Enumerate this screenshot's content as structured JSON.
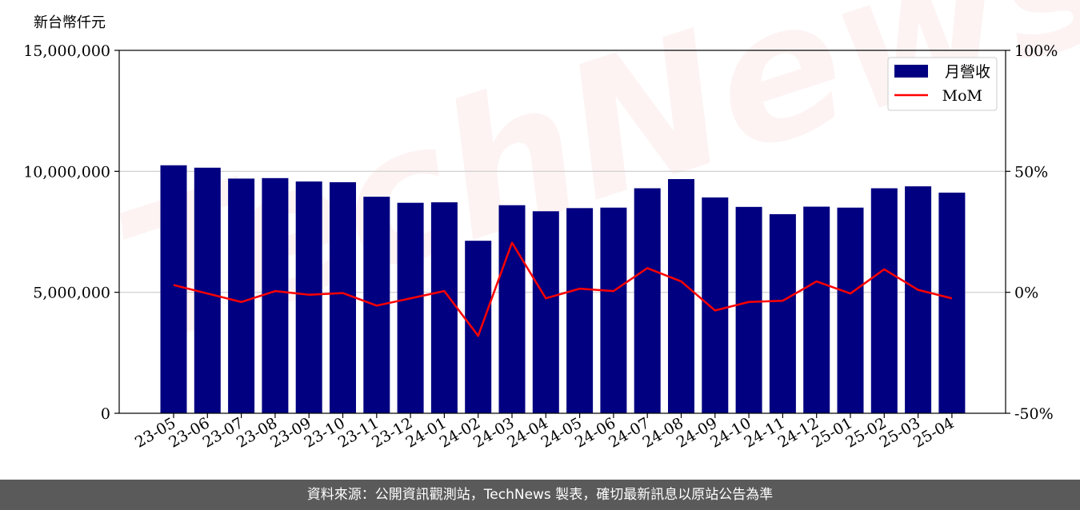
{
  "unit_label": "新台幣仟元",
  "footer_text": "資料來源：公開資訊觀測站，TechNews 製表，確切最新訊息以原站公告為準",
  "watermark_text": "TechNews",
  "colors": {
    "bar": "#000080",
    "line": "#ff0000",
    "grid": "#cccccc",
    "footer": "#5a5a5a"
  },
  "chart_data": {
    "type": "bar",
    "categories": [
      "23-05",
      "23-06",
      "23-07",
      "23-08",
      "23-09",
      "23-10",
      "23-11",
      "23-12",
      "24-01",
      "24-02",
      "24-03",
      "24-04",
      "24-05",
      "24-06",
      "24-07",
      "24-08",
      "24-09",
      "24-10",
      "24-11",
      "24-12",
      "25-01",
      "25-02",
      "25-03",
      "25-04"
    ],
    "series": [
      {
        "name": "月營收",
        "type": "bar",
        "axis": "left",
        "values": [
          10250000,
          10150000,
          9700000,
          9720000,
          9580000,
          9550000,
          8950000,
          8700000,
          8720000,
          7130000,
          8600000,
          8350000,
          8480000,
          8500000,
          9300000,
          9680000,
          8920000,
          8530000,
          8230000,
          8540000,
          8500000,
          9300000,
          9380000,
          9120000
        ]
      },
      {
        "name": "MoM",
        "type": "line",
        "axis": "right",
        "values": [
          3.0,
          -0.5,
          -4.0,
          0.5,
          -1.0,
          -0.3,
          -5.5,
          -2.5,
          0.5,
          -18.0,
          20.5,
          -2.5,
          1.5,
          0.5,
          10.0,
          4.5,
          -7.5,
          -4.0,
          -3.5,
          4.5,
          -0.5,
          9.5,
          1.0,
          -2.5
        ]
      }
    ],
    "y_left": {
      "min": 0,
      "max": 15000000,
      "ticks": [
        0,
        5000000,
        10000000,
        15000000
      ],
      "tick_labels": [
        "0",
        "5,000,000",
        "10,000,000",
        "15,000,000"
      ]
    },
    "y_right": {
      "min": -50,
      "max": 100,
      "ticks": [
        -50,
        0,
        50,
        100
      ],
      "tick_labels": [
        "-50%",
        "0%",
        "50%",
        "100%"
      ]
    },
    "grid": "horizontal",
    "legend_position": "top-right"
  }
}
